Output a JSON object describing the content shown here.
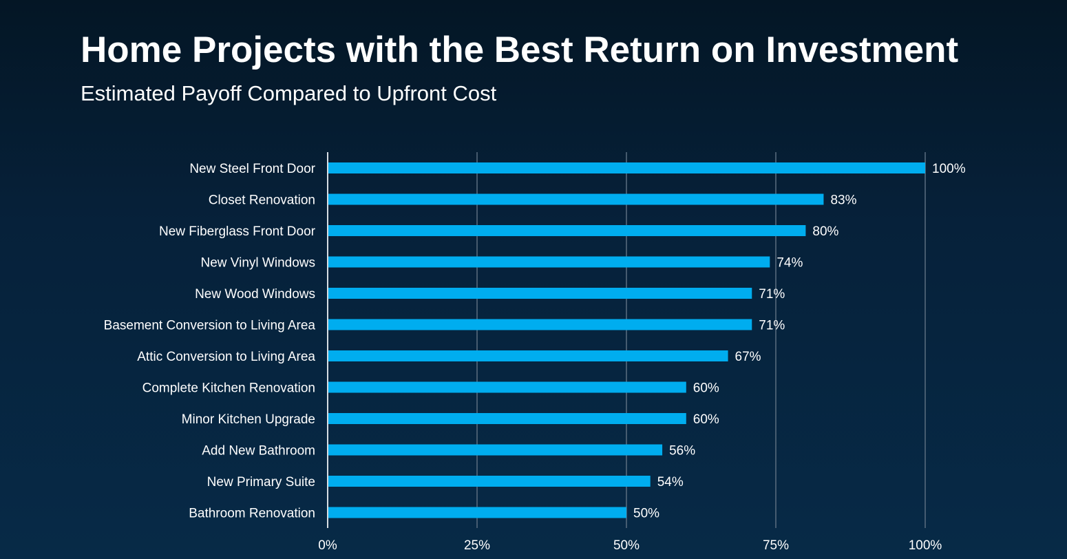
{
  "chart_data": {
    "type": "bar",
    "orientation": "horizontal",
    "title": "Home Projects with the Best Return on Investment",
    "subtitle": "Estimated Payoff Compared to Upfront Cost",
    "categories": [
      "New Steel Front Door",
      "Closet Renovation",
      "New Fiberglass Front Door",
      "New Vinyl Windows",
      "New Wood Windows",
      "Basement Conversion to Living Area",
      "Attic Conversion to Living Area",
      "Complete Kitchen Renovation",
      "Minor Kitchen Upgrade",
      "Add New Bathroom",
      "New Primary Suite",
      "Bathroom Renovation"
    ],
    "values": [
      100,
      83,
      80,
      74,
      71,
      71,
      67,
      60,
      60,
      56,
      54,
      50
    ],
    "value_labels": [
      "100%",
      "83%",
      "80%",
      "74%",
      "71%",
      "71%",
      "67%",
      "60%",
      "60%",
      "56%",
      "54%",
      "50%"
    ],
    "xlim": [
      0,
      100
    ],
    "x_ticks": [
      0,
      25,
      50,
      75,
      100
    ],
    "x_tick_labels": [
      "0%",
      "25%",
      "50%",
      "75%",
      "100%"
    ],
    "xlabel": "",
    "ylabel": "",
    "grid": "vertical",
    "legend": "none",
    "colors": {
      "bar": "#00adef",
      "gridline": "#5b6e80",
      "axis": "#d8dee4",
      "text": "#ffffff"
    }
  }
}
